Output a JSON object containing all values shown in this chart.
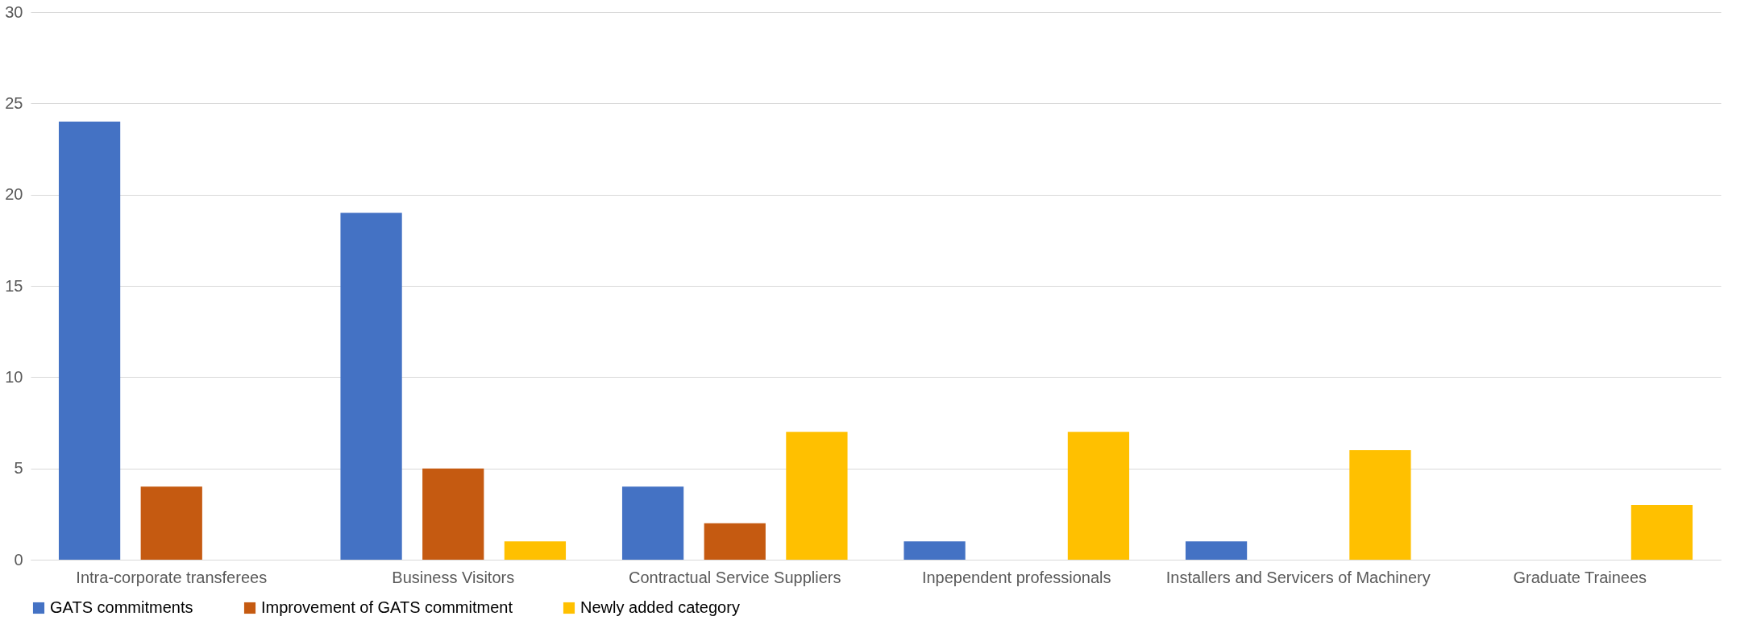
{
  "chart_data": {
    "type": "bar",
    "categories": [
      "Intra-corporate transferees",
      "Business Visitors",
      "Contractual Service Suppliers",
      "Inpependent professionals",
      "Installers and Servicers of Machinery",
      "Graduate Trainees"
    ],
    "series": [
      {
        "name": "GATS commitments",
        "color": "#4472c4",
        "values": [
          24,
          19,
          4,
          1,
          1,
          0
        ]
      },
      {
        "name": "Improvement of GATS commitment",
        "color": "#c55a11",
        "values": [
          4,
          5,
          2,
          0,
          0,
          0
        ]
      },
      {
        "name": "Newly added category",
        "color": "#ffc000",
        "values": [
          0,
          1,
          7,
          7,
          6,
          3
        ]
      }
    ],
    "ylim": [
      0,
      30
    ],
    "yticks": [
      0,
      5,
      10,
      15,
      20,
      25,
      30
    ],
    "grid": "y",
    "legend": "bottom"
  }
}
